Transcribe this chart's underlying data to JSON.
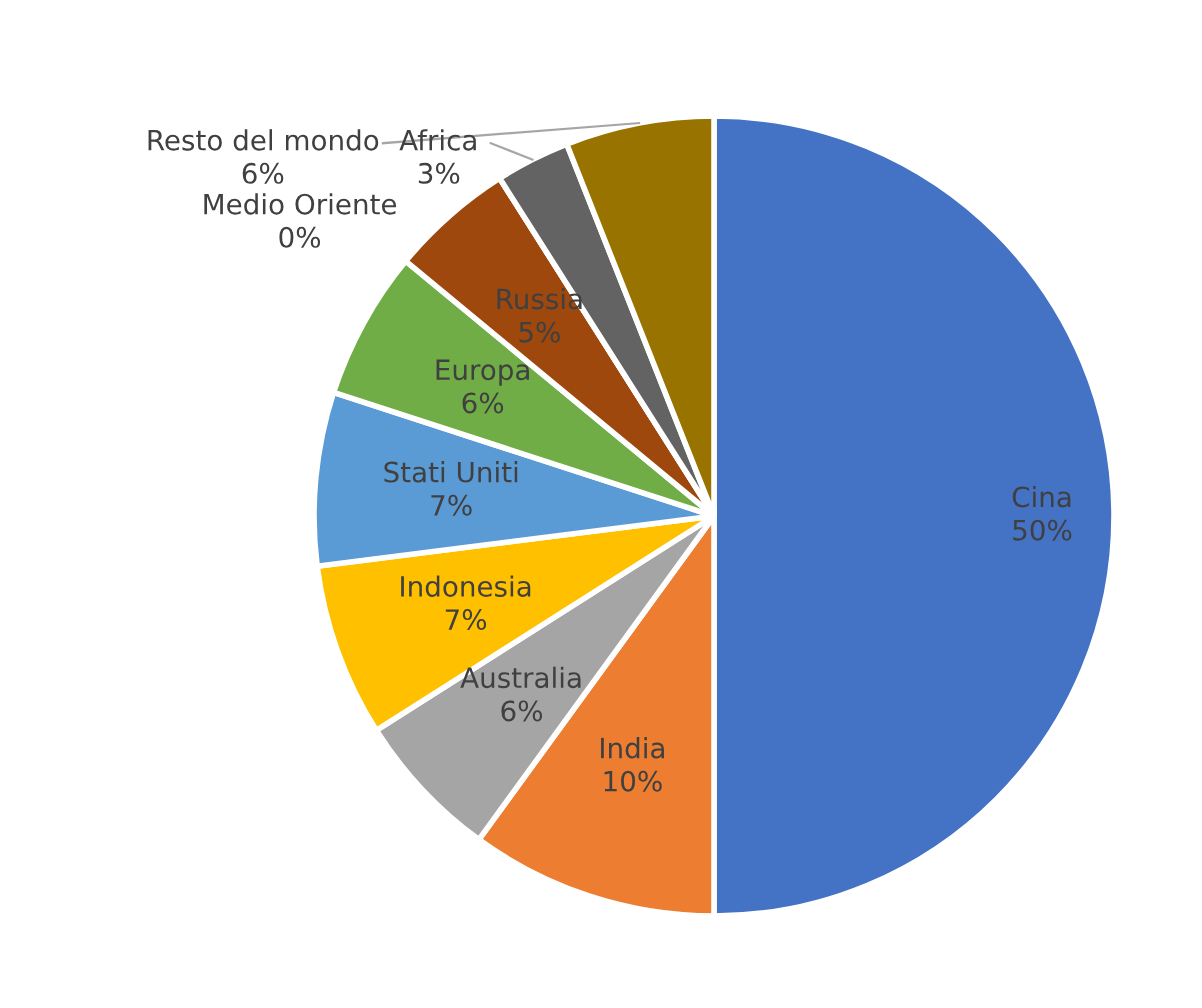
{
  "chart_data": {
    "type": "pie",
    "categories": [
      "Cina",
      "India",
      "Australia",
      "Indonesia",
      "Stati Uniti",
      "Europa",
      "Russia",
      "Medio Oriente",
      "Africa",
      "Resto del mondo"
    ],
    "values": [
      50,
      10,
      6,
      7,
      7,
      6,
      5,
      0,
      3,
      6
    ],
    "value_labels": [
      "50%",
      "10%",
      "6%",
      "7%",
      "7%",
      "6%",
      "5%",
      "0%",
      "3%",
      "6%"
    ],
    "colors": [
      "#4472c4",
      "#ed7d31",
      "#a5a5a5",
      "#ffc000",
      "#5b9bd5",
      "#70ad47",
      "#9e480e",
      "#264478",
      "#636363",
      "#997300"
    ]
  }
}
